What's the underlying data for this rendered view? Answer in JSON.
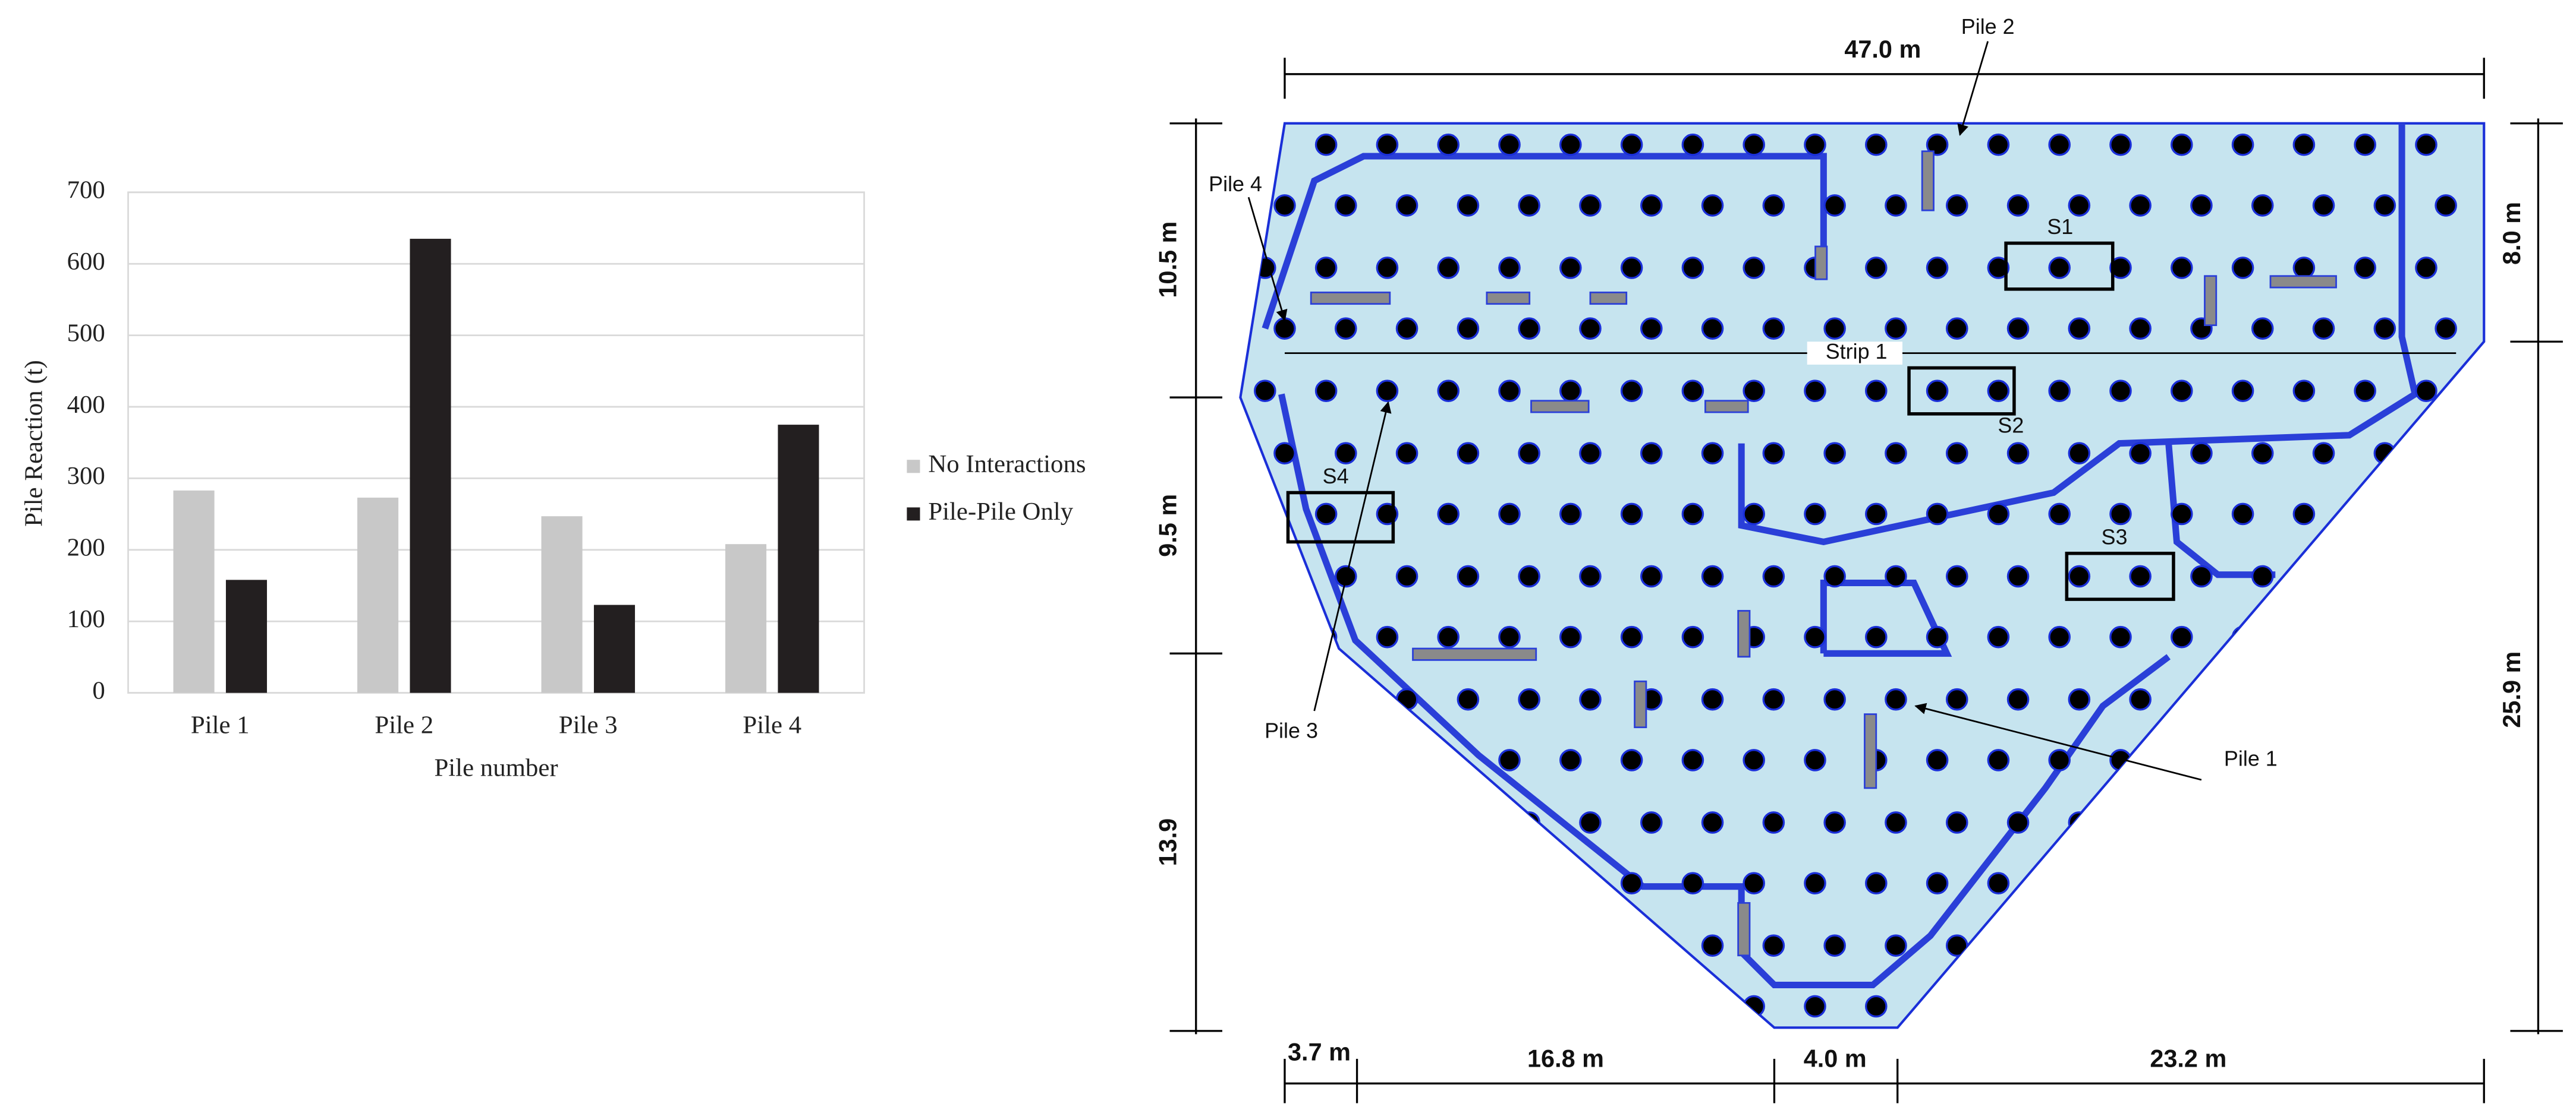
{
  "chart_data": {
    "type": "bar",
    "x_label": "Pile number",
    "y_label": "Pile Reaction (t)",
    "categories": [
      "Pile 1",
      "Pile 2",
      "Pile 3",
      "Pile 4"
    ],
    "series": [
      {
        "name": "No Interactions",
        "color": "#c8c8c8",
        "values": [
          283,
          273,
          247,
          208
        ]
      },
      {
        "name": "Pile-Pile Only",
        "color": "#231f20",
        "values": [
          158,
          635,
          123,
          375
        ]
      }
    ],
    "ylim": [
      0,
      700
    ],
    "yticks": [
      0,
      100,
      200,
      300,
      400,
      500,
      600,
      700
    ],
    "grid": true,
    "legend": "right"
  },
  "diagram": {
    "dimensions": {
      "top": "47.0 m",
      "left_upper": "10.5 m",
      "left_middle": "9.5 m",
      "left_lower": "13.9",
      "right_upper": "8.0 m",
      "right_lower": "25.9 m",
      "bottom_1": "3.7 m",
      "bottom_2": "16.8 m",
      "bottom_3": "4.0 m",
      "bottom_4": "23.2 m"
    },
    "labels": {
      "pile_1": "Pile 1",
      "pile_2": "Pile 2",
      "pile_3": "Pile 3",
      "pile_4": "Pile 4",
      "strip": "Strip 1",
      "s1": "S1",
      "s2": "S2",
      "s3": "S3",
      "s4": "S4"
    }
  }
}
